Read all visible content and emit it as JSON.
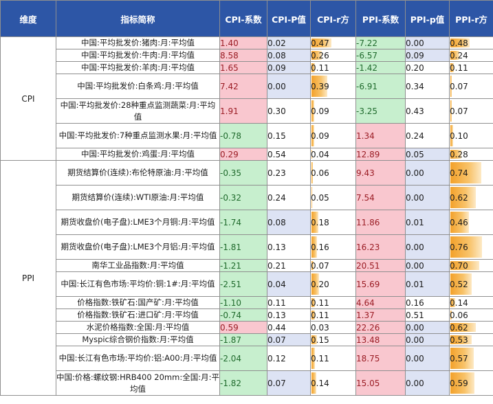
{
  "headers": {
    "dim": "维度",
    "name": "指标简称",
    "cpi_coef": "CPI-系数",
    "cpi_p": "CPI-P值",
    "cpi_r2": "CPI-r方",
    "ppi_coef": "PPI-系数",
    "ppi_p": "PPI-p值",
    "ppi_r2": "PPI-r方"
  },
  "groups": [
    {
      "label": "CPI",
      "rows": [
        {
          "name": "中国:平均批发价:猪肉:月:平均值",
          "cpi_coef": "1.40",
          "cpi_p": "0.02",
          "cpi_r2": "0.47",
          "ppi_coef": "-7.22",
          "ppi_p": "0.00",
          "ppi_r2": "0.48"
        },
        {
          "name": "中国:平均批发价:牛肉:月:平均值",
          "cpi_coef": "8.58",
          "cpi_p": "0.08",
          "cpi_r2": "0.26",
          "ppi_coef": "-6.57",
          "ppi_p": "0.09",
          "ppi_r2": "0.24"
        },
        {
          "name": "中国:平均批发价:羊肉:月:平均值",
          "cpi_coef": "1.65",
          "cpi_p": "0.09",
          "cpi_r2": "0.11",
          "ppi_coef": "-1.42",
          "ppi_p": "0.20",
          "ppi_r2": "0.11"
        },
        {
          "name": "中国:平均批发价:白条鸡:月:平均值",
          "cpi_coef": "7.42",
          "cpi_p": "0.00",
          "cpi_r2": "0.39",
          "ppi_coef": "-6.91",
          "ppi_p": "0.34",
          "ppi_r2": "0.07"
        },
        {
          "name": "中国:平均批发价:28种重点监测蔬菜:月:平均值",
          "cpi_coef": "1.91",
          "cpi_p": "0.30",
          "cpi_r2": "0.09",
          "ppi_coef": "-3.25",
          "ppi_p": "0.43",
          "ppi_r2": "0.07"
        },
        {
          "name": "中国:平均批发价:7种重点监测水果:月:平均值",
          "cpi_coef": "-0.78",
          "cpi_p": "0.15",
          "cpi_r2": "0.09",
          "ppi_coef": "1.34",
          "ppi_p": "0.24",
          "ppi_r2": "0.10"
        },
        {
          "name": "中国:平均批发价:鸡蛋:月:平均值",
          "cpi_coef": "0.29",
          "cpi_p": "0.54",
          "cpi_r2": "0.04",
          "ppi_coef": "12.89",
          "ppi_p": "0.05",
          "ppi_r2": "0.28"
        }
      ]
    },
    {
      "label": "PPI",
      "rows": [
        {
          "name": "期货结算价(连续):布伦特原油:月:平均值",
          "cpi_coef": "-0.35",
          "cpi_p": "0.23",
          "cpi_r2": "0.06",
          "ppi_coef": "9.43",
          "ppi_p": "0.00",
          "ppi_r2": "0.74"
        },
        {
          "name": "期货结算价(连续):WTI原油:月:平均值",
          "cpi_coef": "-0.32",
          "cpi_p": "0.24",
          "cpi_r2": "0.05",
          "ppi_coef": "7.54",
          "ppi_p": "0.00",
          "ppi_r2": "0.62"
        },
        {
          "name": "期货收盘价(电子盘):LME3个月铜:月:平均值",
          "cpi_coef": "-1.74",
          "cpi_p": "0.08",
          "cpi_r2": "0.18",
          "ppi_coef": "11.86",
          "ppi_p": "0.01",
          "ppi_r2": "0.46"
        },
        {
          "name": "期货收盘价(电子盘):LME3个月铝:月:平均值",
          "cpi_coef": "-1.81",
          "cpi_p": "0.13",
          "cpi_r2": "0.16",
          "ppi_coef": "16.23",
          "ppi_p": "0.00",
          "ppi_r2": "0.76"
        },
        {
          "name": "南华工业品指数:月:平均值",
          "cpi_coef": "-1.21",
          "cpi_p": "0.21",
          "cpi_r2": "0.07",
          "ppi_coef": "20.51",
          "ppi_p": "0.00",
          "ppi_r2": "0.70"
        },
        {
          "name": "中国:长江有色市场:平均价:铜:1#:月:平均值",
          "cpi_coef": "-2.51",
          "cpi_p": "0.04",
          "cpi_r2": "0.20",
          "ppi_coef": "15.69",
          "ppi_p": "0.01",
          "ppi_r2": "0.52"
        },
        {
          "name": "价格指数:铁矿石:国产矿:月:平均值",
          "cpi_coef": "-1.10",
          "cpi_p": "0.11",
          "cpi_r2": "0.11",
          "ppi_coef": "4.64",
          "ppi_p": "0.16",
          "ppi_r2": "0.14"
        },
        {
          "name": "价格指数:铁矿石:进口矿:月:平均值",
          "cpi_coef": "-0.74",
          "cpi_p": "0.13",
          "cpi_r2": "0.11",
          "ppi_coef": "1.37",
          "ppi_p": "0.51",
          "ppi_r2": "0.06"
        },
        {
          "name": "水泥价格指数:全国:月:平均值",
          "cpi_coef": "0.59",
          "cpi_p": "0.44",
          "cpi_r2": "0.03",
          "ppi_coef": "22.26",
          "ppi_p": "0.00",
          "ppi_r2": "0.62"
        },
        {
          "name": "Myspic综合钢价指数:月:平均值",
          "cpi_coef": "-1.87",
          "cpi_p": "0.07",
          "cpi_r2": "0.15",
          "ppi_coef": "13.48",
          "ppi_p": "0.00",
          "ppi_r2": "0.53"
        },
        {
          "name": "中国:长江有色市场:平均价:铝:A00:月:平均值",
          "cpi_coef": "-2.04",
          "cpi_p": "0.12",
          "cpi_r2": "0.11",
          "ppi_coef": "18.75",
          "ppi_p": "0.00",
          "ppi_r2": "0.57"
        },
        {
          "name": "中国:价格:螺纹钢:HRB400 20mm:全国:月:平均值",
          "cpi_coef": "-1.82",
          "cpi_p": "0.07",
          "cpi_r2": "0.14",
          "ppi_coef": "15.05",
          "ppi_p": "0.00",
          "ppi_r2": "0.59"
        }
      ]
    }
  ],
  "colors": {
    "header_bg": "#2d56a6",
    "positive_bg": "#f9c7cf",
    "negative_bg": "#c7efce",
    "low_p_bg": "#dde3f4",
    "bar_color": "#f3a12a"
  }
}
